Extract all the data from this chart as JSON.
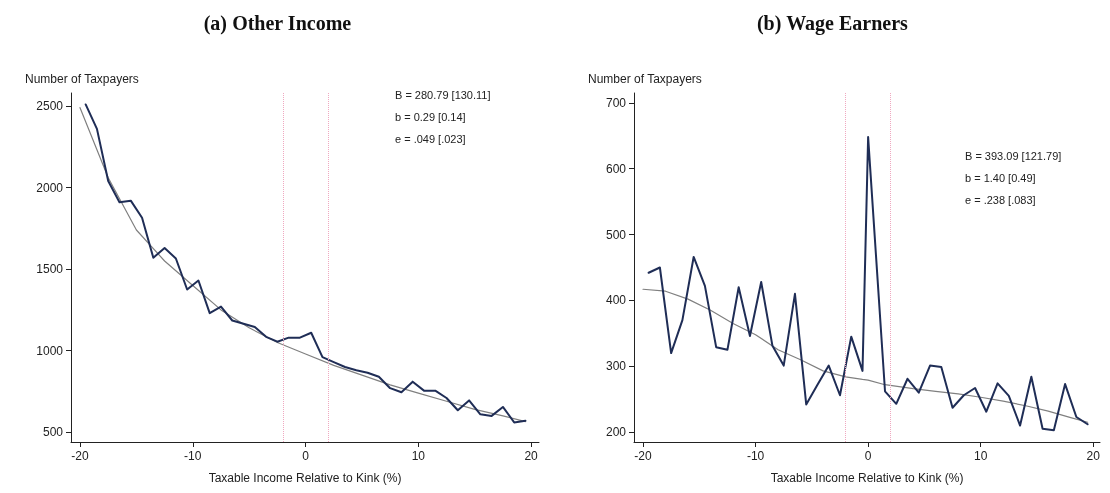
{
  "chart_data": [
    {
      "type": "line",
      "title": "(a) Other Income",
      "xlabel": "Taxable Income Relative to Kink (%)",
      "ylabel": "Number of Taxpayers",
      "xlim": [
        -20.8,
        20.7
      ],
      "xticks": [
        -20,
        -10,
        0,
        10,
        20
      ],
      "ylim": [
        440,
        2580
      ],
      "yticks": [
        500,
        1000,
        1500,
        2000,
        2500
      ],
      "grid": false,
      "annotations": [
        "B = 280.79 [130.11]",
        "b = 0.29 [0.14]",
        "e = .049 [.023]"
      ],
      "ref_lines": [
        {
          "axis": "x",
          "value": -2,
          "label": null,
          "color": "#f0a8c0",
          "line_style": "dotted"
        },
        {
          "axis": "x",
          "value": 2,
          "label": null,
          "color": "#f0a8c0",
          "line_style": "dotted"
        }
      ],
      "series": [
        {
          "color": "#1f2d56",
          "marker": "none",
          "line_style": "solid",
          "x": [
            -19.5,
            -18.5,
            -17.5,
            -16.5,
            -15.5,
            -14.5,
            -13.5,
            -12.5,
            -11.5,
            -10.5,
            -9.5,
            -8.5,
            -7.5,
            -6.5,
            -5.5,
            -4.5,
            -3.5,
            -2.5,
            -1.5,
            -0.5,
            0.5,
            1.5,
            2.5,
            3.5,
            4.5,
            5.5,
            6.5,
            7.5,
            8.5,
            9.5,
            10.5,
            11.5,
            12.5,
            13.5,
            14.5,
            15.5,
            16.5,
            17.5,
            18.5,
            19.5
          ],
          "values": [
            2510,
            2360,
            2040,
            1910,
            1920,
            1815,
            1570,
            1630,
            1565,
            1375,
            1430,
            1230,
            1270,
            1185,
            1165,
            1145,
            1085,
            1055,
            1080,
            1080,
            1110,
            960,
            930,
            900,
            880,
            865,
            840,
            770,
            745,
            810,
            755,
            755,
            710,
            635,
            695,
            610,
            600,
            655,
            560,
            570
          ]
        },
        {
          "color": "#808080",
          "marker": "none",
          "line_style": "solid",
          "x": [
            -20,
            -17.5,
            -15,
            -12.5,
            -10,
            -7.5,
            -5,
            -2.5,
            0,
            2.5,
            5,
            7.5,
            10,
            12.5,
            15,
            17.5,
            19.5
          ],
          "values": [
            2490,
            2060,
            1740,
            1550,
            1400,
            1250,
            1140,
            1050,
            980,
            910,
            850,
            790,
            740,
            690,
            640,
            600,
            565
          ]
        }
      ]
    },
    {
      "type": "line",
      "title": "(b) Wage Earners",
      "xlabel": "Taxable Income Relative to Kink (%)",
      "ylabel": "Number of Taxpayers",
      "xlim": [
        -20.8,
        20.6
      ],
      "xticks": [
        -20,
        -10,
        0,
        10,
        20
      ],
      "ylim": [
        185,
        715
      ],
      "yticks": [
        200,
        300,
        400,
        500,
        600,
        700
      ],
      "grid": false,
      "annotations": [
        "B = 393.09 [121.79]",
        "b = 1.40 [0.49]",
        "e = .238 [.083]"
      ],
      "ref_lines": [
        {
          "axis": "x",
          "value": -2,
          "label": null,
          "color": "#f0a8c0",
          "line_style": "dotted"
        },
        {
          "axis": "x",
          "value": 2,
          "label": null,
          "color": "#f0a8c0",
          "line_style": "dotted"
        }
      ],
      "series": [
        {
          "color": "#1f2d56",
          "marker": "none",
          "line_style": "solid",
          "x": [
            -19.5,
            -18.5,
            -17.5,
            -16.5,
            -15.5,
            -14.5,
            -13.5,
            -12.5,
            -11.5,
            -10.5,
            -9.5,
            -8.5,
            -7.5,
            -6.5,
            -5.5,
            -4.5,
            -3.5,
            -2.5,
            -1.5,
            -0.5,
            0,
            1.5,
            2.5,
            3.5,
            4.5,
            5.5,
            6.5,
            7.5,
            8.5,
            9.5,
            10.5,
            11.5,
            12.5,
            13.5,
            14.5,
            15.5,
            16.5,
            17.5,
            18.5,
            19.5
          ],
          "values": [
            442,
            450,
            320,
            370,
            466,
            422,
            329,
            325,
            420,
            346,
            428,
            331,
            301,
            410,
            242,
            272,
            301,
            256,
            345,
            293,
            648,
            262,
            243,
            281,
            260,
            301,
            299,
            237,
            256,
            267,
            231,
            274,
            255,
            210,
            284,
            205,
            203,
            273,
            223,
            212
          ]
        },
        {
          "color": "#808080",
          "marker": "none",
          "line_style": "solid",
          "x": [
            -20,
            -18,
            -16,
            -14,
            -12,
            -10,
            -8,
            -6,
            -4,
            -2,
            -0.5,
            0,
            1.5,
            4,
            6,
            8,
            10,
            12,
            14,
            16,
            18,
            19.5
          ],
          "values": [
            417,
            414,
            402,
            385,
            365,
            348,
            325,
            310,
            293,
            284,
            280,
            279,
            272,
            266,
            262,
            258,
            253,
            247,
            240,
            232,
            222,
            215
          ]
        }
      ]
    }
  ]
}
